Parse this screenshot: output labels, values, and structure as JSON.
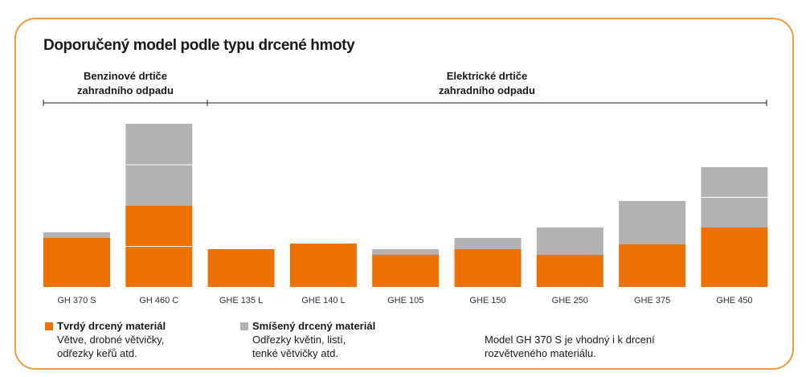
{
  "title": "Doporučený model podle typu drcené hmoty",
  "groups": {
    "petrol": "Benzinové drtiče\nzahradního odpadu",
    "electric": "Elektrické drtiče\nzahradního odpadu"
  },
  "colors": {
    "hard": "#ee7203",
    "mixed": "#b2b2b2",
    "frame": "#f39a3b"
  },
  "chart_data": {
    "type": "bar",
    "stacked": true,
    "categories": [
      "GH 370 S",
      "GH 460 C",
      "GHE 135 L",
      "GHE 140 L",
      "GHE 105",
      "GHE 150",
      "GHE 250",
      "GHE 375",
      "GHE 450"
    ],
    "series": [
      {
        "name": "Tvrdý drcený materiál",
        "values": [
          61,
          101,
          47,
          54,
          40,
          47,
          40,
          53,
          74
        ]
      },
      {
        "name": "Smíšený drcený materiál",
        "values": [
          7,
          102,
          0,
          0,
          7,
          14,
          34,
          54,
          75
        ]
      }
    ],
    "ylim": [
      0,
      210
    ],
    "grid": false
  },
  "legend": {
    "hard": {
      "label": "Tvrdý drcený materiál",
      "desc": [
        "Větve, drobné větvičky,",
        "odřezky keřů atd."
      ]
    },
    "mixed": {
      "label": "Smíšený drcený materiál",
      "desc": [
        "Odřezky květin, listí,",
        "tenké větvičky atd."
      ]
    }
  },
  "note": [
    "Model GH 370 S je vhodný i k drcení",
    "rozvětveného materiálu."
  ]
}
